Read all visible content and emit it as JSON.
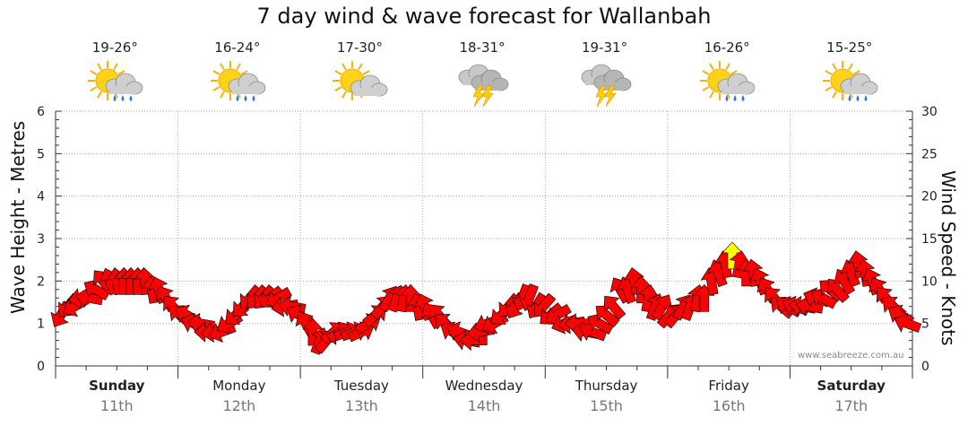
{
  "title": "7 day wind & wave forecast for Wallanbah",
  "credit": "www.seabreeze.com.au",
  "days": [
    {
      "name": "Sunday",
      "date": "11th",
      "temp": "19-26°",
      "icon": "sun-cloud-rain-icon",
      "bold": true
    },
    {
      "name": "Monday",
      "date": "12th",
      "temp": "16-24°",
      "icon": "sun-cloud-rain-icon",
      "bold": false
    },
    {
      "name": "Tuesday",
      "date": "13th",
      "temp": "17-30°",
      "icon": "sun-cloud-icon",
      "bold": false
    },
    {
      "name": "Wednesday",
      "date": "14th",
      "temp": "18-31°",
      "icon": "thunderstorm-icon",
      "bold": false
    },
    {
      "name": "Thursday",
      "date": "15th",
      "temp": "19-31°",
      "icon": "thunderstorm-icon",
      "bold": false
    },
    {
      "name": "Friday",
      "date": "16th",
      "temp": "16-26°",
      "icon": "sun-cloud-rain-icon",
      "bold": false
    },
    {
      "name": "Saturday",
      "date": "17th",
      "temp": "15-25°",
      "icon": "sun-cloud-rain-icon",
      "bold": true
    }
  ],
  "chart_data": {
    "type": "line",
    "title": "7 day wind & wave forecast for Wallanbah",
    "ylabel": "Wave Height - Metres",
    "y2label": "Wind Speed - Knots",
    "ylim": [
      0,
      6
    ],
    "y2lim": [
      0,
      30
    ],
    "yticks": [
      "0",
      "1",
      "2",
      "3",
      "4",
      "5",
      "6"
    ],
    "y2ticks": [
      "0",
      "5",
      "10",
      "15",
      "20",
      "25",
      "30"
    ],
    "grid": true,
    "series": [
      {
        "name": "Wind Speed",
        "unit": "knots",
        "colors": {
          "normal": "#ff0000",
          "high": "#ffff00",
          "outline": "#000000"
        },
        "highlight_threshold_knots": 12.5,
        "values_knots": [
          6,
          7,
          7,
          8,
          8,
          9,
          10,
          10,
          10,
          10,
          10,
          10,
          10,
          9,
          9,
          8,
          7,
          6,
          6,
          5,
          5,
          4,
          4,
          4,
          5,
          6,
          7,
          8,
          8,
          8,
          8,
          8,
          7,
          7,
          6,
          5,
          4,
          3,
          3,
          4,
          4,
          4,
          4,
          4,
          5,
          6,
          7,
          8,
          8,
          8,
          8,
          7,
          7,
          6,
          6,
          5,
          4,
          4,
          3,
          3,
          4,
          5,
          5,
          6,
          7,
          7,
          8,
          8,
          7,
          7,
          6,
          6,
          5,
          5,
          5,
          4,
          4,
          5,
          6,
          7,
          9,
          9,
          10,
          9,
          8,
          7,
          7,
          6,
          6,
          7,
          7,
          8,
          8,
          10,
          11,
          12,
          13,
          12,
          11,
          11,
          10,
          9,
          8,
          7,
          7,
          7,
          7,
          7,
          8,
          8,
          9,
          9,
          10,
          11,
          12,
          11,
          10,
          9,
          8,
          7,
          6,
          5
        ]
      },
      {
        "name": "Wind Direction",
        "unit": "degrees-from",
        "values_deg": [
          30,
          40,
          60,
          80,
          100,
          120,
          140,
          160,
          170,
          180,
          180,
          180,
          175,
          170,
          160,
          150,
          140,
          130,
          120,
          110,
          100,
          90,
          80,
          70,
          60,
          50,
          45,
          40,
          40,
          40,
          50,
          60,
          80,
          100,
          120,
          150,
          180,
          200,
          220,
          230,
          240,
          250,
          250,
          245,
          240,
          230,
          220,
          210,
          200,
          190,
          180,
          170,
          160,
          150,
          140,
          130,
          120,
          110,
          100,
          90,
          80,
          70,
          60,
          50,
          40,
          30,
          20,
          20,
          30,
          40,
          50,
          60,
          70,
          80,
          90,
          100,
          110,
          120,
          130,
          140,
          150,
          160,
          170,
          180,
          190,
          200,
          210,
          220,
          220,
          210,
          200,
          190,
          180,
          170,
          160,
          170,
          180,
          190,
          180,
          170,
          160,
          150,
          140,
          130,
          120,
          110,
          100,
          100,
          110,
          120,
          130,
          140,
          150,
          160,
          170,
          170,
          160,
          150,
          140,
          130,
          120,
          110
        ]
      }
    ]
  }
}
